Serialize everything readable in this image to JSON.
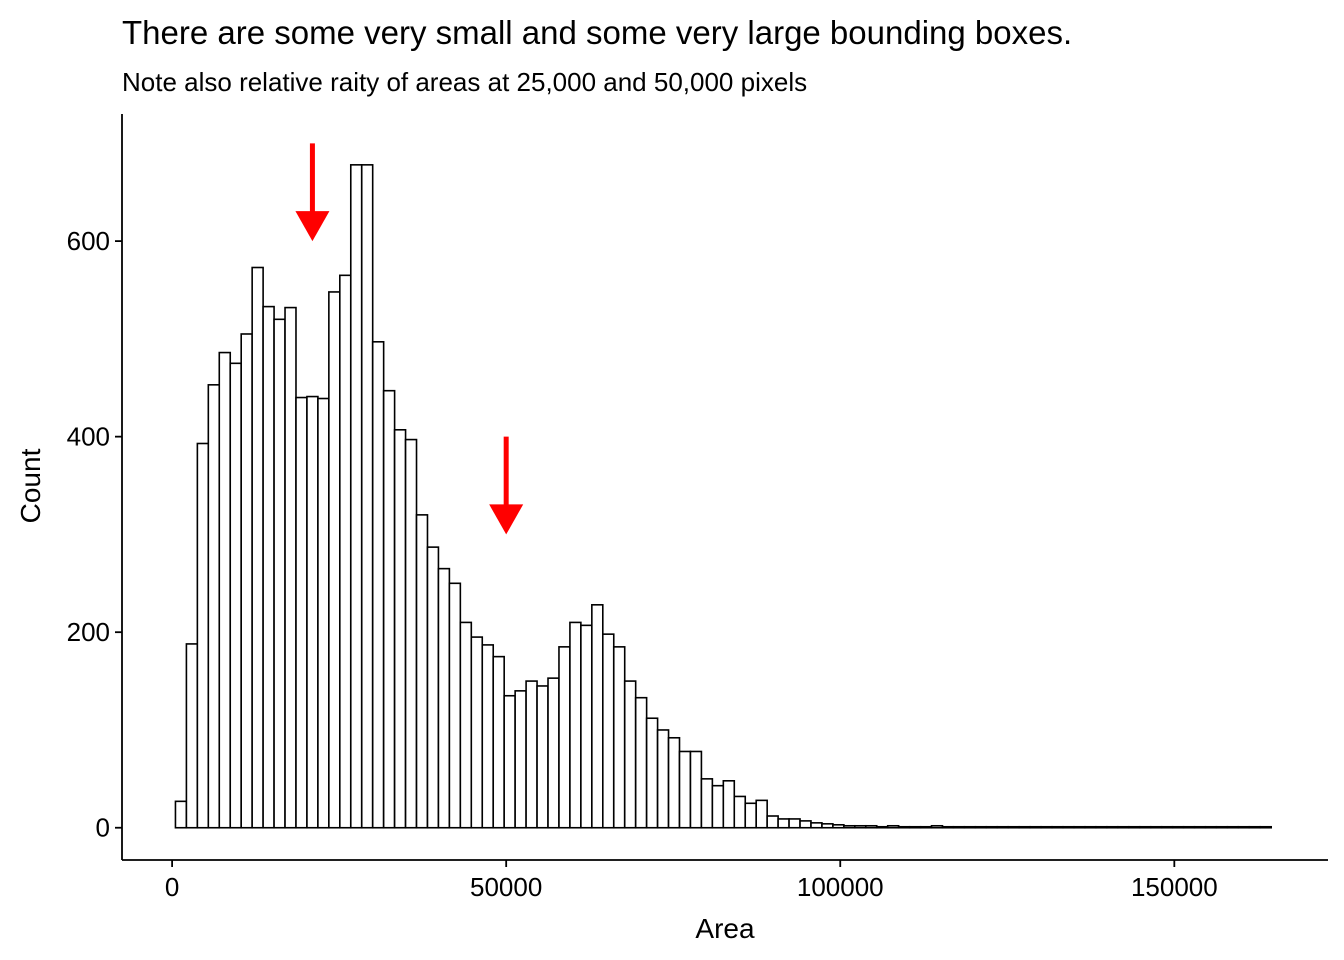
{
  "chart_data": {
    "type": "bar",
    "title": "There are some very small and some very large bounding boxes.",
    "subtitle": "Note also relative raity of areas at 25,000 and 50,000 pixels",
    "xlabel": "Area",
    "ylabel": "Count",
    "xlim": [
      -7500,
      173000
    ],
    "ylim": [
      -33,
      730
    ],
    "x_ticks": [
      0,
      50000,
      100000,
      150000
    ],
    "x_tick_labels": [
      "0",
      "50000",
      "100000",
      "150000"
    ],
    "y_ticks": [
      0,
      200,
      400,
      600
    ],
    "y_tick_labels": [
      "0",
      "200",
      "400",
      "600"
    ],
    "bin_start": 500,
    "bin_width": 1640,
    "values": [
      27,
      188,
      393,
      453,
      486,
      475,
      505,
      573,
      533,
      520,
      532,
      440,
      441,
      439,
      548,
      565,
      678,
      678,
      497,
      447,
      407,
      397,
      320,
      287,
      265,
      250,
      210,
      195,
      187,
      175,
      135,
      140,
      150,
      145,
      153,
      185,
      210,
      207,
      228,
      198,
      185,
      150,
      133,
      112,
      100,
      92,
      78,
      78,
      50,
      43,
      48,
      32,
      25,
      28,
      12,
      9,
      9,
      7,
      5,
      4,
      3,
      2,
      2,
      2,
      1,
      2,
      1,
      1,
      1,
      2,
      1,
      1,
      1,
      1,
      1,
      1,
      1,
      1,
      1,
      1,
      1,
      1,
      1,
      1,
      1,
      1,
      1,
      1,
      1,
      1,
      1,
      1,
      1,
      1,
      1,
      1,
      1,
      1,
      1,
      1
    ],
    "annotations": [
      {
        "type": "arrow",
        "color": "#ff0000",
        "x": 21000,
        "y_start": 700,
        "y_end": 600
      },
      {
        "type": "arrow",
        "color": "#ff0000",
        "x": 50000,
        "y_start": 400,
        "y_end": 300
      }
    ],
    "grid": false,
    "legend": "none"
  }
}
